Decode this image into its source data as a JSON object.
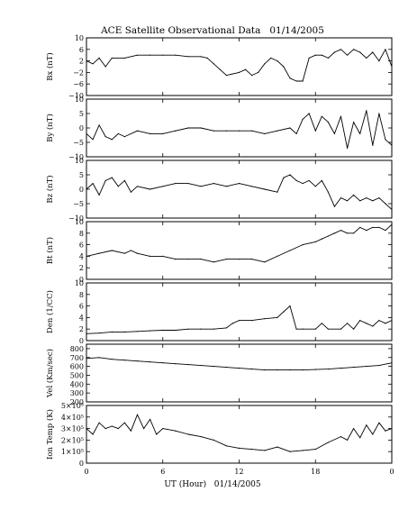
{
  "chart_data": {
    "type": "line",
    "title": "ACE Satellite Observational Data   01/14/2005",
    "xlabel": "UT (Hour)   01/14/2005",
    "x_ticks": [
      "0",
      "6",
      "12",
      "18",
      "0"
    ],
    "xlim_hours": [
      0,
      24
    ],
    "grid": false,
    "line_color": "#000000",
    "panels": [
      {
        "ylabel": "Bx (nT)",
        "ylim": [
          -10,
          10
        ],
        "yticks": [
          {
            "value": 10,
            "label": "10"
          },
          {
            "value": 6,
            "label": "6"
          },
          {
            "value": 2,
            "label": "2"
          },
          {
            "value": -2,
            "label": "−2"
          },
          {
            "value": -6,
            "label": "−6"
          },
          {
            "value": -10,
            "label": "−10"
          }
        ],
        "hours": [
          0,
          0.5,
          1,
          1.5,
          2,
          3,
          4,
          5,
          6,
          7,
          8,
          9,
          9.5,
          10,
          10.5,
          11,
          12,
          12.5,
          13,
          13.5,
          14,
          14.5,
          15,
          15.5,
          16,
          16.5,
          17,
          17.5,
          18,
          18.5,
          19,
          19.5,
          20,
          20.5,
          21,
          21.5,
          22,
          22.5,
          23,
          23.5,
          24
        ],
        "values": [
          2,
          1,
          3,
          0,
          3,
          3,
          4,
          4,
          4,
          4,
          3.5,
          3.5,
          3,
          1,
          -1,
          -3,
          -2,
          -1,
          -3,
          -2,
          1,
          3,
          2,
          0,
          -4,
          -5,
          -5,
          3,
          4,
          4,
          3,
          5,
          6,
          4,
          6,
          5,
          3,
          5,
          2,
          6,
          0
        ]
      },
      {
        "ylabel": "By (nT)",
        "ylim": [
          -10,
          10
        ],
        "yticks": [
          {
            "value": 10,
            "label": "10"
          },
          {
            "value": 5,
            "label": "5"
          },
          {
            "value": 0,
            "label": "0"
          },
          {
            "value": -5,
            "label": "−5"
          },
          {
            "value": -10,
            "label": "−10"
          }
        ],
        "hours": [
          0,
          0.5,
          1,
          1.5,
          2,
          2.5,
          3,
          4,
          5,
          6,
          7,
          8,
          9,
          10,
          11,
          12,
          13,
          14,
          15,
          16,
          16.5,
          17,
          17.5,
          18,
          18.5,
          19,
          19.5,
          20,
          20.5,
          21,
          21.5,
          22,
          22.5,
          23,
          23.5,
          24
        ],
        "values": [
          -2,
          -4,
          1,
          -3,
          -4,
          -2,
          -3,
          -1,
          -2,
          -2,
          -1,
          0,
          0,
          -1,
          -1,
          -1,
          -1,
          -2,
          -1,
          0,
          -2,
          3,
          5,
          -1,
          4,
          2,
          -2,
          4,
          -7,
          2,
          -2,
          6,
          -6,
          5,
          -4,
          -6
        ]
      },
      {
        "ylabel": "Bz (nT)",
        "ylim": [
          -10,
          10
        ],
        "yticks": [
          {
            "value": 10,
            "label": "10"
          },
          {
            "value": 5,
            "label": "5"
          },
          {
            "value": 0,
            "label": "0"
          },
          {
            "value": -5,
            "label": "−5"
          },
          {
            "value": -10,
            "label": "−10"
          }
        ],
        "hours": [
          0,
          0.5,
          1,
          1.5,
          2,
          2.5,
          3,
          3.5,
          4,
          5,
          6,
          7,
          8,
          9,
          10,
          11,
          12,
          13,
          14,
          15,
          15.5,
          16,
          16.5,
          17,
          17.5,
          18,
          18.5,
          19,
          19.5,
          20,
          20.5,
          21,
          21.5,
          22,
          22.5,
          23,
          23.5,
          24
        ],
        "values": [
          0,
          2,
          -2,
          3,
          4,
          1,
          3,
          -1,
          1,
          0,
          1,
          2,
          2,
          1,
          2,
          1,
          2,
          1,
          0,
          -1,
          4,
          5,
          3,
          2,
          3,
          1,
          3,
          -1,
          -6,
          -3,
          -4,
          -2,
          -4,
          -3,
          -4,
          -3,
          -5,
          -7
        ]
      },
      {
        "ylabel": "Bt (nT)",
        "ylim": [
          0,
          10
        ],
        "yticks": [
          {
            "value": 10,
            "label": "10"
          },
          {
            "value": 8,
            "label": "8"
          },
          {
            "value": 6,
            "label": "6"
          },
          {
            "value": 4,
            "label": "4"
          },
          {
            "value": 2,
            "label": "2"
          },
          {
            "value": 0,
            "label": "0"
          }
        ],
        "hours": [
          0,
          1,
          2,
          3,
          3.5,
          4,
          5,
          6,
          7,
          8,
          9,
          10,
          11,
          12,
          13,
          14,
          15,
          16,
          17,
          18,
          18.5,
          19,
          19.5,
          20,
          20.5,
          21,
          21.5,
          22,
          22.5,
          23,
          23.5,
          24
        ],
        "values": [
          4,
          4.5,
          5,
          4.5,
          5,
          4.5,
          4,
          4,
          3.5,
          3.5,
          3.5,
          3,
          3.5,
          3.5,
          3.5,
          3,
          4,
          5,
          6,
          6.5,
          7,
          7.5,
          8,
          8.5,
          8,
          8,
          9,
          8.5,
          9,
          9,
          8.5,
          9.5
        ]
      },
      {
        "ylabel": "Den (1/CC)",
        "ylim": [
          0,
          10
        ],
        "yticks": [
          {
            "value": 10,
            "label": "10"
          },
          {
            "value": 8,
            "label": "8"
          },
          {
            "value": 6,
            "label": "6"
          },
          {
            "value": 4,
            "label": "4"
          },
          {
            "value": 2,
            "label": "2"
          },
          {
            "value": 0,
            "label": "0"
          }
        ],
        "hours": [
          0,
          1,
          2,
          3,
          4,
          5,
          6,
          7,
          8,
          9,
          10,
          11,
          11.5,
          12,
          13,
          14,
          15,
          15.5,
          16,
          16.5,
          17,
          18,
          18.5,
          19,
          20,
          20.5,
          21,
          21.5,
          22,
          22.5,
          23,
          23.5,
          24
        ],
        "values": [
          1.2,
          1.3,
          1.5,
          1.5,
          1.6,
          1.7,
          1.8,
          1.8,
          2,
          2,
          2,
          2.2,
          3,
          3.5,
          3.5,
          3.8,
          4,
          5,
          6,
          2,
          2,
          2,
          3,
          2,
          2,
          3,
          2,
          3.5,
          3,
          2.5,
          3.5,
          3,
          3.5
        ]
      },
      {
        "ylabel": "Vel (Km/sec)",
        "ylim": [
          200,
          850
        ],
        "yticks": [
          {
            "value": 800,
            "label": "800"
          },
          {
            "value": 700,
            "label": "700"
          },
          {
            "value": 600,
            "label": "600"
          },
          {
            "value": 500,
            "label": "500"
          },
          {
            "value": 400,
            "label": "400"
          },
          {
            "value": 300,
            "label": "300"
          },
          {
            "value": 200,
            "label": "200"
          }
        ],
        "hours": [
          0,
          1,
          2,
          3,
          4,
          5,
          6,
          7,
          8,
          9,
          10,
          11,
          12,
          13,
          14,
          15,
          16,
          17,
          18,
          19,
          20,
          21,
          22,
          23,
          24
        ],
        "values": [
          690,
          700,
          680,
          670,
          660,
          650,
          640,
          630,
          620,
          610,
          600,
          590,
          580,
          570,
          560,
          560,
          560,
          560,
          565,
          570,
          580,
          590,
          600,
          610,
          640
        ]
      },
      {
        "ylabel": "Ion Temp (K)",
        "ylim": [
          0,
          500000
        ],
        "yticks": [
          {
            "value": 500000,
            "label": "5×10⁵"
          },
          {
            "value": 400000,
            "label": "4×10⁵"
          },
          {
            "value": 300000,
            "label": "3×10⁵"
          },
          {
            "value": 200000,
            "label": "2×10⁵"
          },
          {
            "value": 100000,
            "label": "1×10⁵"
          },
          {
            "value": 0,
            "label": "0"
          }
        ],
        "hours": [
          0,
          0.5,
          1,
          1.5,
          2,
          2.5,
          3,
          3.5,
          4,
          4.5,
          5,
          5.5,
          6,
          7,
          8,
          9,
          10,
          11,
          12,
          13,
          14,
          15,
          16,
          17,
          18,
          19,
          20,
          20.5,
          21,
          21.5,
          22,
          22.5,
          23,
          23.5,
          24
        ],
        "values": [
          300000,
          250000,
          350000,
          300000,
          320000,
          300000,
          350000,
          280000,
          420000,
          300000,
          380000,
          250000,
          300000,
          280000,
          250000,
          230000,
          200000,
          150000,
          130000,
          120000,
          110000,
          140000,
          100000,
          110000,
          120000,
          180000,
          230000,
          200000,
          300000,
          220000,
          330000,
          250000,
          350000,
          280000,
          300000
        ]
      }
    ]
  }
}
